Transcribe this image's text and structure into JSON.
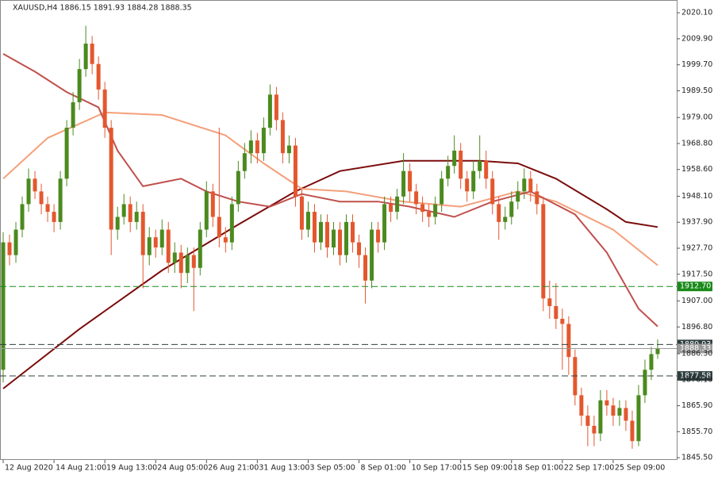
{
  "chart_data": {
    "type": "candlestick",
    "title": "XAUUSD,H4  1886.15 1891.93 1884.28 1888.35",
    "bull_color": "#4b8a1e",
    "bear_color": "#e4572e",
    "ylim": [
      1844.6,
      2024.5
    ],
    "xlim": [
      -0.5,
      106
    ],
    "yticks": [
      {
        "value": 2020.1,
        "label": "2020.10"
      },
      {
        "value": 2009.9,
        "label": "2009.90"
      },
      {
        "value": 1999.7,
        "label": "1999.70"
      },
      {
        "value": 1989.5,
        "label": "1989.50"
      },
      {
        "value": 1979,
        "label": "1979.00"
      },
      {
        "value": 1968.8,
        "label": "1968.80"
      },
      {
        "value": 1958.6,
        "label": "1958.60"
      },
      {
        "value": 1948.1,
        "label": "1948.10"
      },
      {
        "value": 1937.9,
        "label": "1937.90"
      },
      {
        "value": 1927.7,
        "label": "1927.70"
      },
      {
        "value": 1917.5,
        "label": "1917.50"
      },
      {
        "value": 1907,
        "label": "1907.00"
      },
      {
        "value": 1896.8,
        "label": "1896.80"
      },
      {
        "value": 1886.3,
        "label": "1886.30"
      },
      {
        "value": 1876.1,
        "label": "1876.10"
      },
      {
        "value": 1865.9,
        "label": "1865.90"
      },
      {
        "value": 1855.7,
        "label": "1855.70"
      },
      {
        "value": 1845.5,
        "label": "1845.50"
      }
    ],
    "xticks": [
      {
        "value": 0,
        "label": "12 Aug 2020"
      },
      {
        "value": 8,
        "label": "14 Aug 21:00"
      },
      {
        "value": 16,
        "label": "19 Aug 13:00"
      },
      {
        "value": 24,
        "label": "24 Aug 05:00"
      },
      {
        "value": 32,
        "label": "26 Aug 21:00"
      },
      {
        "value": 40,
        "label": "31 Aug 13:00"
      },
      {
        "value": 48,
        "label": "3 Sep 05:00"
      },
      {
        "value": 56,
        "label": "8 Sep 01:00"
      },
      {
        "value": 64,
        "label": "10 Sep 17:00"
      },
      {
        "value": 72,
        "label": "15 Sep 09:00"
      },
      {
        "value": 80,
        "label": "18 Sep 01:00"
      },
      {
        "value": 88,
        "label": "22 Sep 17:00"
      },
      {
        "value": 96,
        "label": "25 Sep 09:00"
      }
    ],
    "open": [
      1880,
      1930,
      1925,
      1935,
      1945,
      1955,
      1950,
      1945,
      1942,
      1938,
      1955,
      1975,
      1985,
      1998,
      2008,
      2000,
      1990,
      1975,
      1935,
      1940,
      1945,
      1938,
      1942,
      1925,
      1932,
      1928,
      1935,
      1922,
      1926,
      1918,
      1925,
      1920,
      1935,
      1950,
      1940,
      1932,
      1930,
      1945,
      1958,
      1965,
      1970,
      1965,
      1975,
      1988,
      1978,
      1965,
      1968,
      1948,
      1935,
      1942,
      1930,
      1938,
      1928,
      1935,
      1925,
      1938,
      1930,
      1925,
      1915,
      1935,
      1930,
      1945,
      1942,
      1948,
      1958,
      1950,
      1945,
      1942,
      1940,
      1945,
      1955,
      1960,
      1966,
      1955,
      1950,
      1958,
      1962,
      1955,
      1945,
      1938,
      1940,
      1946,
      1950,
      1955,
      1950,
      1945,
      1908,
      1905,
      1900,
      1898,
      1885,
      1870,
      1862,
      1858,
      1855,
      1868,
      1866,
      1862,
      1865,
      1860,
      1852,
      1870,
      1880,
      1886.15
    ],
    "high": [
      1934,
      1933,
      1938,
      1948,
      1959,
      1958,
      1953,
      1948,
      1945,
      1958,
      1978,
      1989,
      2002,
      2015,
      2011,
      2003,
      1993,
      1978,
      1944,
      1949,
      1948,
      1946,
      1945,
      1936,
      1935,
      1939,
      1938,
      1930,
      1929,
      1928,
      1928,
      1938,
      1954,
      1953,
      1975,
      1936,
      1948,
      1962,
      1969,
      1974,
      1973,
      1979,
      1992,
      1991,
      1981,
      1972,
      1971,
      1951,
      1946,
      1945,
      1941,
      1941,
      1938,
      1938,
      1941,
      1941,
      1933,
      1928,
      1938,
      1938,
      1948,
      1948,
      1951,
      1965,
      1961,
      1953,
      1948,
      1945,
      1948,
      1958,
      1964,
      1972,
      1969,
      1958,
      1962,
      1972,
      1966,
      1958,
      1948,
      1944,
      1950,
      1954,
      1959,
      1958,
      1953,
      1948,
      1915,
      1914,
      1904,
      1901,
      1888,
      1873,
      1866,
      1862,
      1872,
      1872,
      1869,
      1868,
      1868,
      1864,
      1874,
      1884,
      1889,
      1891.93
    ],
    "low": [
      1875,
      1921,
      1922,
      1932,
      1942,
      1947,
      1941,
      1938,
      1934,
      1935,
      1952,
      1972,
      1982,
      1995,
      1996,
      1986,
      1971,
      1925,
      1931,
      1937,
      1934,
      1935,
      1912,
      1921,
      1924,
      1925,
      1918,
      1918,
      1912,
      1914,
      1903,
      1917,
      1932,
      1936,
      1928,
      1926,
      1927,
      1942,
      1955,
      1961,
      1961,
      1962,
      1972,
      1974,
      1961,
      1961,
      1944,
      1931,
      1932,
      1926,
      1927,
      1924,
      1925,
      1921,
      1922,
      1926,
      1920,
      1906,
      1912,
      1926,
      1927,
      1938,
      1939,
      1945,
      1946,
      1941,
      1938,
      1936,
      1937,
      1942,
      1952,
      1957,
      1951,
      1946,
      1947,
      1955,
      1951,
      1941,
      1931,
      1935,
      1937,
      1943,
      1947,
      1946,
      1941,
      1903,
      1900,
      1896,
      1880,
      1878,
      1866,
      1858,
      1850,
      1850,
      1852,
      1862,
      1858,
      1858,
      1856,
      1849,
      1850,
      1867,
      1876,
      1884.28
    ],
    "close": [
      1930,
      1925,
      1935,
      1945,
      1955,
      1950,
      1945,
      1942,
      1938,
      1955,
      1975,
      1985,
      1998,
      2008,
      2000,
      1990,
      1975,
      1935,
      1940,
      1945,
      1938,
      1942,
      1925,
      1932,
      1928,
      1935,
      1922,
      1926,
      1918,
      1925,
      1920,
      1935,
      1950,
      1940,
      1932,
      1930,
      1945,
      1958,
      1965,
      1970,
      1965,
      1975,
      1988,
      1978,
      1965,
      1968,
      1948,
      1935,
      1942,
      1930,
      1938,
      1928,
      1935,
      1925,
      1938,
      1930,
      1925,
      1915,
      1935,
      1930,
      1945,
      1942,
      1948,
      1958,
      1950,
      1945,
      1942,
      1940,
      1945,
      1955,
      1960,
      1966,
      1955,
      1950,
      1958,
      1962,
      1955,
      1945,
      1938,
      1940,
      1946,
      1950,
      1955,
      1950,
      1945,
      1908,
      1905,
      1900,
      1898,
      1885,
      1870,
      1862,
      1858,
      1855,
      1868,
      1866,
      1862,
      1865,
      1860,
      1852,
      1870,
      1880,
      1886.15,
      1888.35
    ],
    "lines": [
      {
        "color": "#7b0c0c",
        "x": [
          0,
          12,
          25,
          37,
          46,
          53,
          63,
          75,
          81,
          87,
          95,
          98,
          103
        ],
        "values": [
          1872.6,
          1896,
          1919,
          1937,
          1950,
          1958,
          1962,
          1962,
          1961,
          1955,
          1943,
          1938,
          1936
        ]
      },
      {
        "color": "#f4a07a",
        "x": [
          0,
          7,
          16,
          25,
          35,
          41,
          47,
          54,
          63,
          72,
          81,
          87,
          96,
          103
        ],
        "values": [
          1955,
          1971,
          1981,
          1980,
          1972,
          1961,
          1951,
          1950,
          1946,
          1944,
          1950,
          1946,
          1935,
          1921
        ]
      },
      {
        "color": "#c0504d",
        "x": [
          0,
          5,
          10,
          15,
          18,
          22,
          28,
          32,
          37,
          42,
          47,
          53,
          59,
          64,
          71,
          77,
          83,
          90,
          95,
          100,
          103
        ],
        "values": [
          2004,
          1997,
          1989,
          1983,
          1966,
          1952,
          1955,
          1950,
          1946,
          1944,
          1949,
          1946,
          1946,
          1944,
          1940,
          1946,
          1950,
          1941,
          1926,
          1904,
          1897
        ]
      }
    ],
    "levels": [
      {
        "value": 1912.7,
        "label": "1912.70",
        "color": "#1a8a1a",
        "dashed": true
      },
      {
        "value": 1889.93,
        "label": "1889.93",
        "color": "#2f3f3f",
        "dashed": true
      },
      {
        "value": 1888.33,
        "label": "1888.33",
        "color": "#9a9a9a",
        "dashed": false
      },
      {
        "value": 1877.58,
        "label": "1877.58",
        "color": "#2f3f3f",
        "dashed": true
      }
    ]
  }
}
